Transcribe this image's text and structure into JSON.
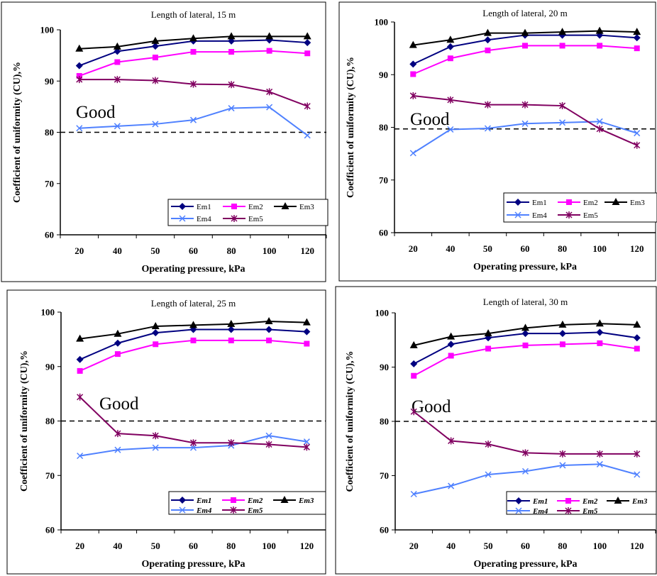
{
  "chart_data": [
    {
      "type": "line",
      "title": "Length of lateral, 15 m",
      "xlabel": "Operating pressure, kPa",
      "ylabel": "Coefficient of uniformity (CU),%",
      "categories": [
        "20",
        "40",
        "50",
        "60",
        "80",
        "100",
        "120"
      ],
      "ylim": [
        60,
        100
      ],
      "yticks": [
        "60",
        "70",
        "80",
        "90",
        "100"
      ],
      "annotation": "Good",
      "reference_line": 80,
      "legend_style": "normal",
      "series": [
        {
          "name": "Em1",
          "color": "#000080",
          "marker": "diamond",
          "values": [
            93.0,
            95.8,
            96.8,
            97.8,
            97.8,
            98.0,
            97.5
          ]
        },
        {
          "name": "Em2",
          "color": "#ff00ff",
          "marker": "square",
          "values": [
            91.0,
            93.7,
            94.6,
            95.7,
            95.7,
            95.9,
            95.4
          ]
        },
        {
          "name": "Em3",
          "color": "#000000",
          "marker": "triangle",
          "values": [
            96.3,
            96.7,
            97.8,
            98.3,
            98.7,
            98.7,
            98.7
          ]
        },
        {
          "name": "Em4",
          "color": "#4f81ff",
          "marker": "x",
          "values": [
            80.8,
            81.2,
            81.6,
            82.4,
            84.7,
            84.9,
            79.4
          ]
        },
        {
          "name": "Em5",
          "color": "#800060",
          "marker": "star",
          "values": [
            90.3,
            90.3,
            90.1,
            89.4,
            89.3,
            87.9,
            85.1
          ]
        }
      ]
    },
    {
      "type": "line",
      "title": "Length of lateral, 20 m",
      "xlabel": "Operating pressure, kPa",
      "ylabel": "Coefficient of uniformity (CU),%",
      "categories": [
        "20",
        "40",
        "50",
        "60",
        "80",
        "100",
        "120"
      ],
      "ylim": [
        60,
        100
      ],
      "yticks": [
        "60",
        "70",
        "80",
        "90",
        "100"
      ],
      "annotation": "Good",
      "reference_line": 79.7,
      "legend_style": "normal",
      "series": [
        {
          "name": "Em1",
          "color": "#000080",
          "marker": "diamond",
          "values": [
            92.0,
            95.3,
            96.6,
            97.5,
            97.5,
            97.5,
            97.0
          ]
        },
        {
          "name": "Em2",
          "color": "#ff00ff",
          "marker": "square",
          "values": [
            90.1,
            93.1,
            94.6,
            95.5,
            95.5,
            95.5,
            95.0
          ]
        },
        {
          "name": "Em3",
          "color": "#000000",
          "marker": "triangle",
          "values": [
            95.6,
            96.6,
            97.9,
            97.9,
            98.1,
            98.3,
            98.1
          ]
        },
        {
          "name": "Em4",
          "color": "#4f81ff",
          "marker": "x",
          "values": [
            75.1,
            79.6,
            79.8,
            80.7,
            80.9,
            81.1,
            78.9
          ]
        },
        {
          "name": "Em5",
          "color": "#800060",
          "marker": "star",
          "values": [
            86.0,
            85.2,
            84.3,
            84.3,
            84.1,
            79.7,
            76.6
          ]
        }
      ]
    },
    {
      "type": "line",
      "title": "Length of lateral, 25 m",
      "xlabel": "Operating pressure, kPa",
      "ylabel": "Coefficient of uniformity (CU),%",
      "categories": [
        "20",
        "40",
        "50",
        "60",
        "80",
        "100",
        "120"
      ],
      "ylim": [
        60,
        100
      ],
      "yticks": [
        "60",
        "70",
        "80",
        "90",
        "100"
      ],
      "annotation": "Good",
      "reference_line": 80,
      "legend_style": "italic",
      "series": [
        {
          "name": "Em1",
          "color": "#000080",
          "marker": "diamond",
          "values": [
            91.3,
            94.3,
            96.2,
            96.8,
            96.8,
            96.8,
            96.4
          ]
        },
        {
          "name": "Em2",
          "color": "#ff00ff",
          "marker": "square",
          "values": [
            89.2,
            92.3,
            94.1,
            94.8,
            94.8,
            94.8,
            94.2
          ]
        },
        {
          "name": "Em3",
          "color": "#000000",
          "marker": "triangle",
          "values": [
            95.1,
            96.0,
            97.4,
            97.6,
            97.8,
            98.3,
            98.1
          ]
        },
        {
          "name": "Em4",
          "color": "#4f81ff",
          "marker": "x",
          "values": [
            73.6,
            74.7,
            75.1,
            75.1,
            75.5,
            77.3,
            76.2
          ]
        },
        {
          "name": "Em5",
          "color": "#800060",
          "marker": "star",
          "values": [
            84.4,
            77.7,
            77.3,
            76.0,
            76.0,
            75.7,
            75.2
          ]
        }
      ]
    },
    {
      "type": "line",
      "title": "Length of lateral, 30 m",
      "xlabel": "Operating pressure, kPa",
      "ylabel": "Coefficient of uniformity (CU),%",
      "categories": [
        "20",
        "40",
        "50",
        "60",
        "80",
        "100",
        "120"
      ],
      "ylim": [
        60,
        100
      ],
      "yticks": [
        "60",
        "70",
        "80",
        "90",
        "100"
      ],
      "annotation": "Good",
      "reference_line": 80,
      "legend_style": "italic",
      "series": [
        {
          "name": "Em1",
          "color": "#000080",
          "marker": "diamond",
          "values": [
            90.6,
            94.2,
            95.4,
            96.2,
            96.2,
            96.4,
            95.4
          ]
        },
        {
          "name": "Em2",
          "color": "#ff00ff",
          "marker": "square",
          "values": [
            88.4,
            92.1,
            93.4,
            94.0,
            94.2,
            94.4,
            93.4
          ]
        },
        {
          "name": "Em3",
          "color": "#000000",
          "marker": "triangle",
          "values": [
            94.0,
            95.6,
            96.2,
            97.2,
            97.8,
            98.0,
            97.8
          ]
        },
        {
          "name": "Em4",
          "color": "#4f81ff",
          "marker": "x",
          "values": [
            66.6,
            68.1,
            70.2,
            70.8,
            71.9,
            72.1,
            70.2
          ]
        },
        {
          "name": "Em5",
          "color": "#800060",
          "marker": "star",
          "values": [
            81.8,
            76.4,
            75.8,
            74.2,
            74.0,
            74.0,
            74.0
          ]
        }
      ]
    }
  ]
}
